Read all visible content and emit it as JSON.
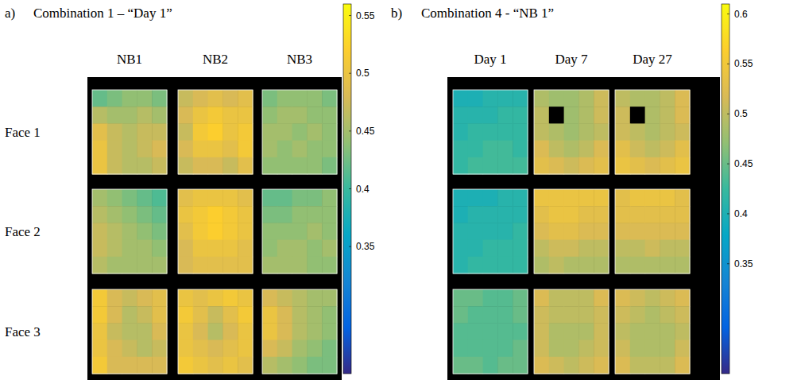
{
  "chart_data": [
    {
      "type": "heatmap",
      "panel": "a)",
      "title": "Combination 1 – “Day 1”",
      "columns": [
        "NB1",
        "NB2",
        "NB3"
      ],
      "rows": [
        "Face 1",
        "Face 2",
        "Face 3"
      ],
      "tick_labels": false,
      "colorbar_lim": [
        0.24,
        0.56
      ],
      "colorbar_ticks": [
        0.35,
        0.4,
        0.45,
        0.5,
        0.55
      ],
      "cells": [
        [
          [
            [
              0.42,
              0.43,
              0.44,
              0.44,
              0.43
            ],
            [
              0.46,
              0.45,
              0.45,
              0.46,
              0.45
            ],
            [
              0.49,
              0.47,
              0.46,
              0.47,
              0.47
            ],
            [
              0.5,
              0.47,
              0.46,
              0.47,
              0.48
            ],
            [
              0.5,
              0.47,
              0.46,
              0.46,
              0.47
            ]
          ],
          [
            [
              0.47,
              0.48,
              0.49,
              0.48,
              0.49
            ],
            [
              0.48,
              0.5,
              0.51,
              0.5,
              0.5
            ],
            [
              0.47,
              0.51,
              0.52,
              0.5,
              0.51
            ],
            [
              0.48,
              0.5,
              0.5,
              0.49,
              0.51
            ],
            [
              0.47,
              0.48,
              0.48,
              0.47,
              0.49
            ]
          ],
          [
            [
              0.43,
              0.44,
              0.44,
              0.44,
              0.43
            ],
            [
              0.44,
              0.45,
              0.45,
              0.44,
              0.44
            ],
            [
              0.45,
              0.45,
              0.44,
              0.45,
              0.44
            ],
            [
              0.45,
              0.44,
              0.45,
              0.44,
              0.44
            ],
            [
              0.44,
              0.44,
              0.44,
              0.44,
              0.43
            ]
          ]
        ],
        [
          [
            [
              0.45,
              0.44,
              0.43,
              0.42,
              0.41
            ],
            [
              0.46,
              0.45,
              0.44,
              0.43,
              0.42
            ],
            [
              0.47,
              0.46,
              0.45,
              0.44,
              0.43
            ],
            [
              0.47,
              0.46,
              0.45,
              0.45,
              0.44
            ],
            [
              0.46,
              0.45,
              0.45,
              0.45,
              0.45
            ]
          ],
          [
            [
              0.49,
              0.5,
              0.5,
              0.5,
              0.49
            ],
            [
              0.5,
              0.51,
              0.52,
              0.51,
              0.5
            ],
            [
              0.49,
              0.51,
              0.52,
              0.51,
              0.5
            ],
            [
              0.48,
              0.5,
              0.5,
              0.5,
              0.49
            ],
            [
              0.48,
              0.49,
              0.49,
              0.49,
              0.49
            ]
          ],
          [
            [
              0.42,
              0.42,
              0.43,
              0.43,
              0.44
            ],
            [
              0.43,
              0.43,
              0.44,
              0.44,
              0.44
            ],
            [
              0.44,
              0.44,
              0.44,
              0.45,
              0.44
            ],
            [
              0.44,
              0.45,
              0.45,
              0.44,
              0.45
            ],
            [
              0.45,
              0.45,
              0.45,
              0.44,
              0.44
            ]
          ]
        ],
        [
          [
            [
              0.51,
              0.48,
              0.47,
              0.48,
              0.49
            ],
            [
              0.51,
              0.48,
              0.46,
              0.47,
              0.49
            ],
            [
              0.5,
              0.47,
              0.46,
              0.46,
              0.48
            ],
            [
              0.5,
              0.48,
              0.47,
              0.46,
              0.47
            ],
            [
              0.51,
              0.48,
              0.48,
              0.48,
              0.48
            ]
          ],
          [
            [
              0.5,
              0.49,
              0.5,
              0.51,
              0.5
            ],
            [
              0.51,
              0.49,
              0.47,
              0.49,
              0.51
            ],
            [
              0.5,
              0.48,
              0.46,
              0.48,
              0.5
            ],
            [
              0.5,
              0.49,
              0.48,
              0.49,
              0.5
            ],
            [
              0.51,
              0.5,
              0.49,
              0.5,
              0.49
            ]
          ],
          [
            [
              0.48,
              0.47,
              0.46,
              0.45,
              0.45
            ],
            [
              0.5,
              0.48,
              0.46,
              0.45,
              0.44
            ],
            [
              0.5,
              0.48,
              0.46,
              0.45,
              0.44
            ],
            [
              0.48,
              0.47,
              0.45,
              0.44,
              0.43
            ],
            [
              0.46,
              0.45,
              0.44,
              0.43,
              0.43
            ]
          ]
        ]
      ]
    },
    {
      "type": "heatmap",
      "panel": "b)",
      "title": "Combination 4 - “NB 1”",
      "columns": [
        "Day 1",
        "Day 7",
        "Day 27"
      ],
      "tick_labels": false,
      "colorbar_lim": [
        0.24,
        0.61
      ],
      "colorbar_ticks": [
        0.35,
        0.4,
        0.45,
        0.5,
        0.55,
        0.6
      ],
      "cells": [
        [
          [
            [
              0.4,
              0.4,
              0.41,
              0.41,
              0.41
            ],
            [
              0.41,
              0.41,
              0.41,
              0.42,
              0.42
            ],
            [
              0.41,
              0.42,
              0.42,
              0.42,
              0.42
            ],
            [
              0.42,
              0.42,
              0.43,
              0.43,
              0.42
            ],
            [
              0.42,
              0.43,
              0.43,
              0.43,
              0.43
            ]
          ],
          [
            [
              0.49,
              0.48,
              0.48,
              0.49,
              0.51
            ],
            [
              0.5,
              null,
              0.48,
              0.49,
              0.51
            ],
            [
              0.5,
              0.49,
              0.48,
              0.49,
              0.5
            ],
            [
              0.52,
              0.5,
              0.49,
              0.5,
              0.52
            ],
            [
              0.53,
              0.52,
              0.51,
              0.52,
              0.53
            ]
          ],
          [
            [
              0.5,
              0.49,
              0.49,
              0.5,
              0.52
            ],
            [
              0.51,
              null,
              0.49,
              0.5,
              0.52
            ],
            [
              0.51,
              0.5,
              0.49,
              0.5,
              0.51
            ],
            [
              0.53,
              0.51,
              0.5,
              0.51,
              0.53
            ],
            [
              0.54,
              0.53,
              0.52,
              0.53,
              0.54
            ]
          ]
        ],
        [
          [
            [
              0.4,
              0.4,
              0.4,
              0.41,
              0.41
            ],
            [
              0.4,
              0.41,
              0.41,
              0.41,
              0.41
            ],
            [
              0.41,
              0.41,
              0.41,
              0.41,
              0.42
            ],
            [
              0.41,
              0.41,
              0.42,
              0.42,
              0.42
            ],
            [
              0.41,
              0.42,
              0.42,
              0.42,
              0.42
            ]
          ],
          [
            [
              0.54,
              0.54,
              0.54,
              0.54,
              0.54
            ],
            [
              0.53,
              0.54,
              0.54,
              0.53,
              0.53
            ],
            [
              0.52,
              0.53,
              0.53,
              0.52,
              0.52
            ],
            [
              0.5,
              0.51,
              0.51,
              0.5,
              0.5
            ],
            [
              0.49,
              0.5,
              0.49,
              0.49,
              0.49
            ]
          ],
          [
            [
              0.53,
              0.54,
              0.54,
              0.54,
              0.53
            ],
            [
              0.53,
              0.53,
              0.53,
              0.53,
              0.53
            ],
            [
              0.52,
              0.52,
              0.52,
              0.52,
              0.52
            ],
            [
              0.5,
              0.5,
              0.51,
              0.5,
              0.5
            ],
            [
              0.49,
              0.49,
              0.49,
              0.49,
              0.49
            ]
          ]
        ],
        [
          [
            [
              0.45,
              0.45,
              0.44,
              0.44,
              0.45
            ],
            [
              0.45,
              0.44,
              0.44,
              0.44,
              0.45
            ],
            [
              0.44,
              0.44,
              0.44,
              0.44,
              0.44
            ],
            [
              0.44,
              0.44,
              0.44,
              0.44,
              0.45
            ],
            [
              0.45,
              0.45,
              0.44,
              0.45,
              0.45
            ]
          ],
          [
            [
              0.52,
              0.5,
              0.5,
              0.5,
              0.52
            ],
            [
              0.51,
              0.5,
              0.5,
              0.5,
              0.51
            ],
            [
              0.51,
              0.49,
              0.49,
              0.49,
              0.51
            ],
            [
              0.51,
              0.49,
              0.49,
              0.5,
              0.51
            ],
            [
              0.52,
              0.51,
              0.5,
              0.51,
              0.52
            ]
          ],
          [
            [
              0.52,
              0.51,
              0.5,
              0.51,
              0.52
            ],
            [
              0.51,
              0.5,
              0.49,
              0.5,
              0.51
            ],
            [
              0.5,
              0.49,
              0.49,
              0.49,
              0.5
            ],
            [
              0.51,
              0.49,
              0.49,
              0.49,
              0.51
            ],
            [
              0.52,
              0.5,
              0.5,
              0.5,
              0.52
            ]
          ]
        ]
      ]
    }
  ]
}
